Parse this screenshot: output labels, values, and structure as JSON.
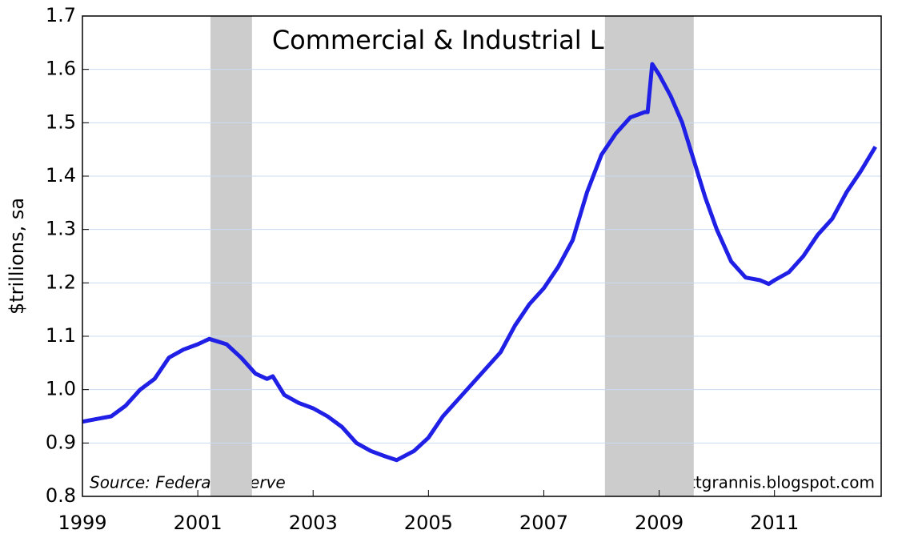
{
  "chart_data": {
    "type": "line",
    "title": "Commercial & Industrial Loans",
    "y_label": "$trillions, sa",
    "source": "Source:  Federal Reserve",
    "credit": "scottgrannis.blogspot.com",
    "xlim": [
      1999,
      2012.85
    ],
    "xticks": [
      1999,
      2001,
      2003,
      2005,
      2007,
      2009,
      2011
    ],
    "ylim": [
      0.8,
      1.7
    ],
    "yticks": [
      0.8,
      0.9,
      {
        "value": 1,
        "label": "1.0"
      },
      1.1,
      1.2,
      1.3,
      1.4,
      1.5,
      1.6,
      1.7
    ],
    "grid": true,
    "shaded_periods": [
      [
        2001.22,
        2001.94
      ],
      [
        2008.06,
        2009.6
      ]
    ],
    "shade_color": "#cccccc",
    "x": [
      1999.0,
      1999.25,
      1999.5,
      1999.75,
      2000.0,
      2000.25,
      2000.5,
      2000.75,
      2001.0,
      2001.2,
      2001.5,
      2001.75,
      2002.0,
      2002.2,
      2002.3,
      2002.5,
      2002.75,
      2003.0,
      2003.25,
      2003.5,
      2003.75,
      2004.0,
      2004.25,
      2004.45,
      2004.75,
      2005.0,
      2005.25,
      2005.5,
      2005.75,
      2006.0,
      2006.25,
      2006.5,
      2006.75,
      2007.0,
      2007.25,
      2007.5,
      2007.75,
      2008.0,
      2008.25,
      2008.5,
      2008.75,
      2008.8,
      2008.88,
      2009.0,
      2009.2,
      2009.4,
      2009.6,
      2009.8,
      2010.0,
      2010.25,
      2010.5,
      2010.75,
      2010.9,
      2011.0,
      2011.25,
      2011.5,
      2011.75,
      2012.0,
      2012.25,
      2012.5,
      2012.75
    ],
    "series": [
      {
        "color": "#1f1fe6",
        "values": [
          0.94,
          0.945,
          0.95,
          0.97,
          1.0,
          1.02,
          1.06,
          1.075,
          1.085,
          1.095,
          1.085,
          1.06,
          1.03,
          1.02,
          1.025,
          0.99,
          0.975,
          0.965,
          0.95,
          0.93,
          0.9,
          0.885,
          0.875,
          0.868,
          0.885,
          0.91,
          0.95,
          0.98,
          1.01,
          1.04,
          1.07,
          1.12,
          1.16,
          1.19,
          1.23,
          1.28,
          1.37,
          1.44,
          1.48,
          1.51,
          1.52,
          1.52,
          1.61,
          1.59,
          1.55,
          1.5,
          1.43,
          1.36,
          1.3,
          1.24,
          1.21,
          1.205,
          1.198,
          1.205,
          1.22,
          1.25,
          1.29,
          1.32,
          1.37,
          1.41,
          1.455
        ]
      }
    ]
  }
}
